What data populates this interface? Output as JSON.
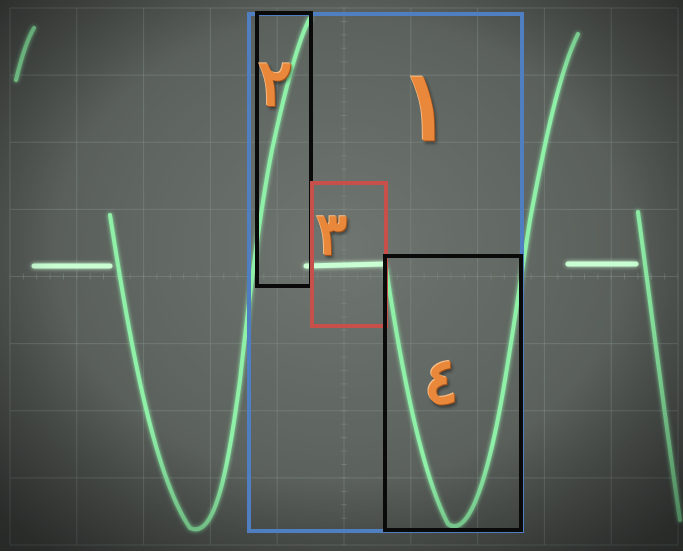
{
  "image": {
    "subject": "oscilloscope-screen",
    "colors": {
      "trace": "#8ff0a8",
      "grid": "#7f8a86",
      "box_1": "#4f7fc0",
      "box_2": "#0a0a0a",
      "box_3": "#c8504a",
      "box_4": "#0a0a0a",
      "labels": "#e9883a"
    }
  },
  "regions": [
    {
      "label": "١"
    },
    {
      "label": "٢"
    },
    {
      "label": "٣"
    },
    {
      "label": "٤"
    }
  ]
}
